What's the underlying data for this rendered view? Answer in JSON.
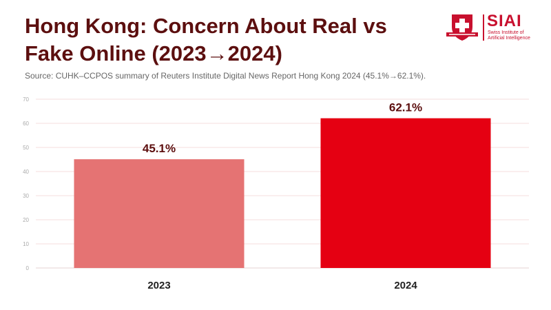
{
  "header": {
    "title": "Hong Kong: Concern About Real vs Fake Online (2023→2024)",
    "source": "Source: CUHK–CCPOS summary of Reuters Institute Digital News Report Hong Kong 2024 (45.1%→62.1%)."
  },
  "logo": {
    "name": "SIAI",
    "tagline_line1": "Swiss Institute of",
    "tagline_line2": "Artificial Intelligence"
  },
  "chart_data": {
    "type": "bar",
    "categories": [
      "2023",
      "2024"
    ],
    "values": [
      45.1,
      62.1
    ],
    "value_labels": [
      "45.1%",
      "62.1%"
    ],
    "ylim": [
      0,
      70
    ],
    "yticks": [
      0,
      10,
      20,
      30,
      40,
      50,
      60,
      70
    ],
    "grid": true,
    "colors": [
      "#e57373",
      "#e50012"
    ]
  }
}
